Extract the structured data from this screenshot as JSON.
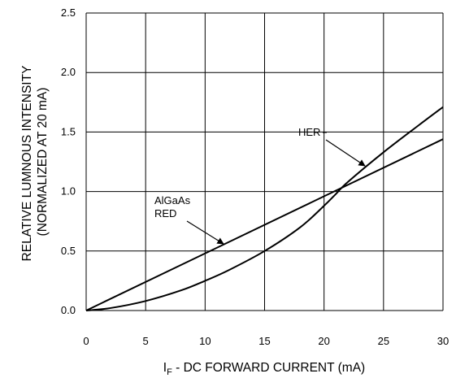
{
  "chart_data": {
    "type": "line",
    "xlabel": "I",
    "xlabel_sub": "F",
    "xlabel_rest": " - DC FORWARD CURRENT (mA)",
    "ylabel": [
      "RELATIVE LUMNOUS INTENSITY",
      "(NORMALIZED AT 20 mA)"
    ],
    "xlim": [
      0,
      30
    ],
    "ylim": [
      0,
      2.5
    ],
    "x_ticks": [
      "0",
      "5",
      "10",
      "15",
      "20",
      "25",
      "30"
    ],
    "y_ticks": [
      "0.0",
      "0.5",
      "1.0",
      "1.5",
      "2.0",
      "2.5"
    ],
    "grid": true,
    "series": [
      {
        "name": "HER",
        "x": [
          0,
          30
        ],
        "y": [
          0,
          1.44
        ]
      },
      {
        "name": "AlGaAs RED",
        "x": [
          0,
          2,
          5,
          8,
          10,
          12,
          15,
          18,
          20,
          21,
          22,
          25,
          28,
          30
        ],
        "y": [
          0,
          0.02,
          0.08,
          0.17,
          0.25,
          0.34,
          0.5,
          0.7,
          0.88,
          0.98,
          1.08,
          1.33,
          1.56,
          1.71
        ]
      }
    ],
    "annotations": [
      {
        "lines": [
          "HER"
        ],
        "points_to_series": "HER"
      },
      {
        "lines": [
          "AlGaAs",
          "RED"
        ],
        "points_to_series": "AlGaAs RED"
      }
    ]
  }
}
